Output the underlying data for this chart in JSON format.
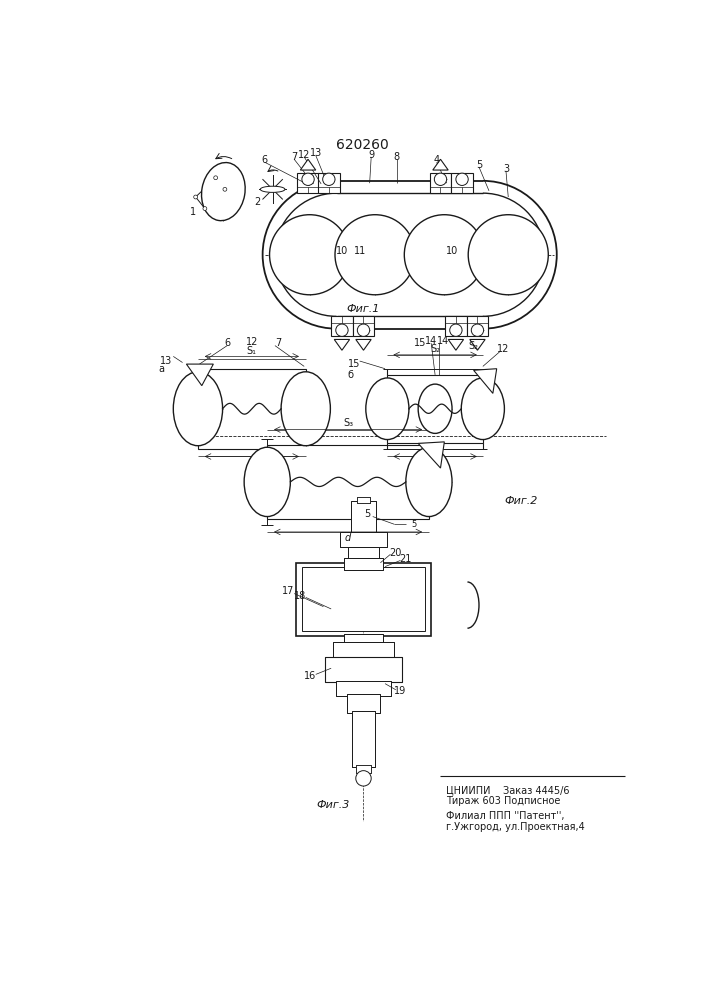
{
  "title": "620260",
  "bg_color": "#ffffff",
  "line_color": "#1a1a1a",
  "fig1_label": "Фиг.1",
  "fig2_label": "Фиг.2",
  "fig3_label": "Фиг.3",
  "bottom_text1": "ЦНИИПИ    Заказ 4445/6",
  "bottom_text2": "Тираж 603 Подписное",
  "bottom_text3": "Филиал ППП ''Патент'',",
  "bottom_text4": "г.Ужгород, ул.Проектная,4"
}
